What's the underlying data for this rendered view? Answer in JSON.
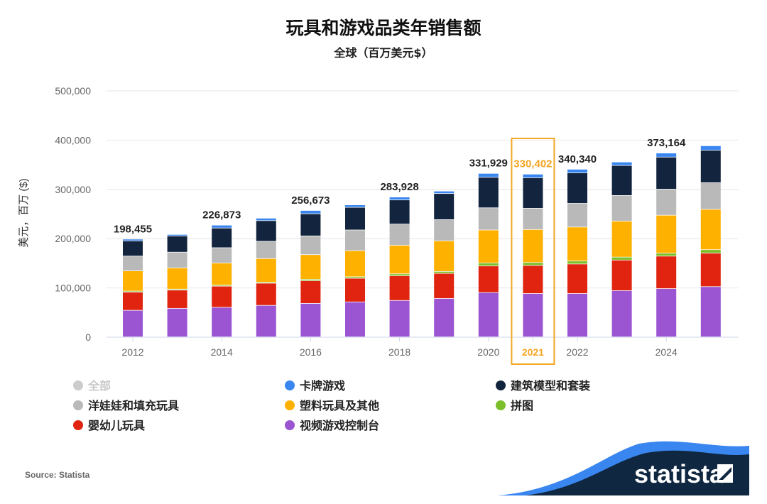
{
  "chart_data": {
    "type": "bar",
    "stacked": true,
    "title": "玩具和游戏品类年销售额",
    "subtitle": "全球（百万美元$）",
    "ylabel": "美元，百万 ($)",
    "xlabel": "",
    "ylim": [
      0,
      500000
    ],
    "yticks": [
      "0",
      "100,000",
      "200,000",
      "300,000",
      "400,000",
      "500,000"
    ],
    "grid": true,
    "categories": [
      "2012",
      "2013",
      "2014",
      "2015",
      "2016",
      "2017",
      "2018",
      "2019",
      "2020",
      "2021",
      "2022",
      "2023",
      "2024",
      "2025"
    ],
    "xtick_labels": [
      "2012",
      "2014",
      "2016",
      "2018",
      "2020",
      "2021",
      "2022",
      "2024"
    ],
    "highlight_category": "2021",
    "highlight_color": "#f5a623",
    "series": [
      {
        "name": "视频游戏控制台",
        "color": "#9b55d2",
        "values": [
          54000,
          58000,
          60000,
          64000,
          68000,
          71000,
          74000,
          78000,
          90000,
          88000,
          88000,
          94000,
          98000,
          102000
        ]
      },
      {
        "name": "婴幼儿玩具",
        "color": "#e0240f",
        "values": [
          37000,
          37000,
          43000,
          45000,
          46000,
          48000,
          50000,
          51000,
          54000,
          57000,
          60000,
          62000,
          66000,
          68000
        ]
      },
      {
        "name": "拼图",
        "color": "#7cbf2a",
        "values": [
          2000,
          2000,
          2000,
          2000,
          3000,
          3000,
          4000,
          4000,
          6000,
          6000,
          6000,
          6000,
          6000,
          7000
        ]
      },
      {
        "name": "塑料玩具及其他",
        "color": "#ffb100",
        "values": [
          41000,
          43000,
          45000,
          48000,
          50000,
          53000,
          58000,
          62000,
          67000,
          67000,
          69000,
          73000,
          77000,
          82000
        ]
      },
      {
        "name": "洋娃娃和填充玩具",
        "color": "#b9b9b9",
        "values": [
          30000,
          32000,
          31000,
          35000,
          38000,
          42000,
          43000,
          43000,
          45000,
          43000,
          48000,
          52000,
          53000,
          54000
        ]
      },
      {
        "name": "建筑模型和套装",
        "color": "#13253e",
        "values": [
          31000,
          33000,
          40000,
          42000,
          45000,
          46000,
          49000,
          53000,
          62000,
          62000,
          62000,
          61000,
          65000,
          66000
        ]
      },
      {
        "name": "卡牌游戏",
        "color": "#3a86f0",
        "values": [
          3455,
          3000,
          5873,
          5000,
          6673,
          5000,
          5928,
          5000,
          7929,
          7402,
          7340,
          7000,
          8164,
          9000
        ]
      }
    ],
    "total_labels": [
      {
        "category": "2012",
        "text": "198,455"
      },
      {
        "category": "2014",
        "text": "226,873"
      },
      {
        "category": "2016",
        "text": "256,673"
      },
      {
        "category": "2018",
        "text": "283,928"
      },
      {
        "category": "2020",
        "text": "331,929"
      },
      {
        "category": "2021",
        "text": "330,402"
      },
      {
        "category": "2022",
        "text": "340,340"
      },
      {
        "category": "2024",
        "text": "373,164"
      }
    ],
    "legend": {
      "placement": "bottom",
      "items": [
        {
          "label": "全部",
          "color": "#cccccc",
          "disabled": true
        },
        {
          "label": "卡牌游戏",
          "color": "#3a86f0"
        },
        {
          "label": "建筑模型和套装",
          "color": "#13253e"
        },
        {
          "label": "洋娃娃和填充玩具",
          "color": "#b9b9b9"
        },
        {
          "label": "塑料玩具及其他",
          "color": "#ffb100"
        },
        {
          "label": "拼图",
          "color": "#7cbf2a"
        },
        {
          "label": "婴幼儿玩具",
          "color": "#e0240f"
        },
        {
          "label": "视频游戏控制台",
          "color": "#9b55d2"
        }
      ]
    }
  },
  "footer": {
    "source": "Source: Statista",
    "logo": "statista"
  }
}
